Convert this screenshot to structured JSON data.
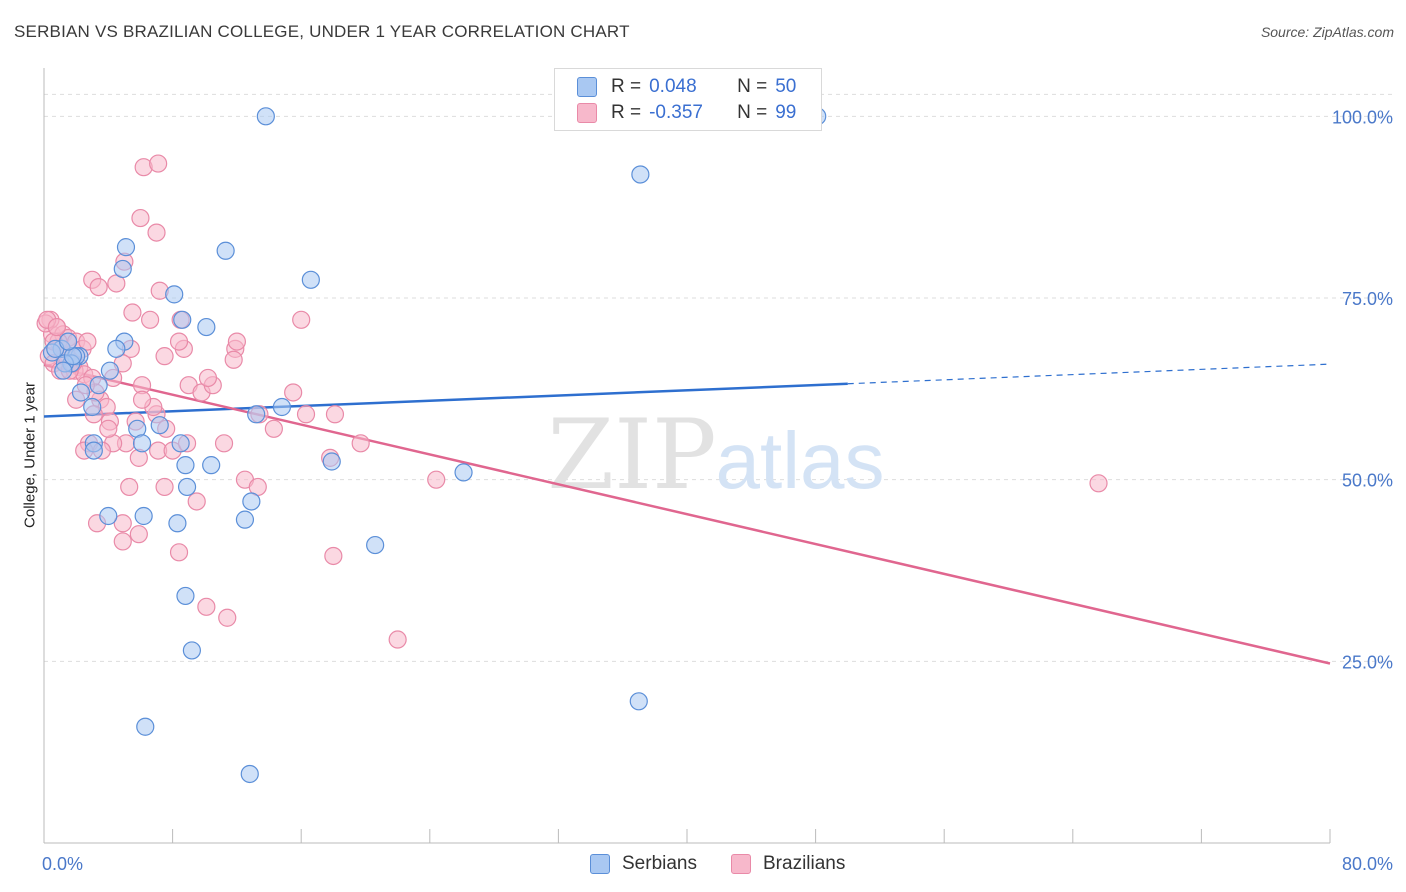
{
  "header": {
    "title": "SERBIAN VS BRAZILIAN COLLEGE, UNDER 1 YEAR CORRELATION CHART",
    "source": "Source: ZipAtlas.com"
  },
  "watermark": {
    "zip": "ZIP",
    "atlas": "atlas"
  },
  "legend": {
    "serbians": {
      "r_label": "R =",
      "r_value": "0.048",
      "n_label": "N =",
      "n_value": "50"
    },
    "brazilians": {
      "r_label": "R =",
      "r_value": "-0.357",
      "n_label": "N =",
      "n_value": "99"
    }
  },
  "bottom_legend": {
    "serbians": "Serbians",
    "brazilians": "Brazilians"
  },
  "colors": {
    "serbian_fill": "#a9c8f2",
    "serbian_stroke": "#5b8fd8",
    "serbian_line": "#2e6fcf",
    "brazilian_fill": "#f7b8cb",
    "brazilian_stroke": "#e98aa8",
    "brazilian_line": "#e0668f",
    "tick_label": "#4a78c9",
    "grid": "#dddddd"
  },
  "chart_data": {
    "type": "scatter",
    "title": "SERBIAN VS BRAZILIAN COLLEGE, UNDER 1 YEAR CORRELATION CHART",
    "xlabel": "",
    "ylabel": "College, Under 1 year",
    "xlim": [
      0,
      80
    ],
    "ylim": [
      0,
      105
    ],
    "x_tick_labels": [
      "0.0%",
      "80.0%"
    ],
    "y_ticks": [
      25,
      50,
      75,
      100
    ],
    "y_tick_labels": [
      "25.0%",
      "50.0%",
      "75.0%",
      "100.0%"
    ],
    "grid": true,
    "legend_placement": "top-center",
    "series": [
      {
        "name": "Serbians",
        "r": 0.048,
        "n": 50,
        "trend": {
          "x": [
            0,
            50
          ],
          "y": [
            58.7,
            63.2
          ],
          "dashed_to": [
            80,
            65.9
          ]
        },
        "x": [
          13.8,
          48.1,
          37.1,
          5.1,
          11.3,
          16.6,
          4.9,
          8.1,
          8.6,
          10.1,
          5.0,
          4.5,
          1.1,
          2.2,
          2.0,
          1.7,
          3.4,
          2.3,
          13.2,
          14.8,
          5.8,
          7.2,
          8.5,
          8.8,
          3.1,
          3.1,
          6.1,
          10.4,
          17.9,
          26.1,
          8.9,
          4.0,
          6.2,
          8.3,
          12.5,
          12.9,
          20.6,
          8.8,
          9.2,
          6.3,
          37.0,
          12.8,
          0.5,
          1.3,
          0.7,
          4.1,
          1.8,
          3.0,
          1.2,
          1.5
        ],
        "y": [
          100.0,
          100.0,
          92.0,
          82.0,
          81.5,
          77.5,
          79.0,
          75.5,
          72.0,
          71.0,
          69.0,
          68.0,
          68.0,
          67.0,
          67.0,
          66.0,
          63.0,
          62.0,
          59.0,
          60.0,
          57.0,
          57.5,
          55.0,
          52.0,
          55.0,
          54.0,
          55.0,
          52.0,
          52.5,
          51.0,
          49.0,
          45.0,
          45.0,
          44.0,
          44.5,
          47.0,
          41.0,
          34.0,
          26.5,
          16.0,
          19.5,
          9.5,
          67.5,
          66.0,
          68.0,
          65.0,
          67.0,
          60.0,
          65.0,
          69.0
        ]
      },
      {
        "name": "Brazilians",
        "r": -0.357,
        "n": 99,
        "trend": {
          "x": [
            0,
            80
          ],
          "y": [
            65.8,
            24.7
          ]
        },
        "x": [
          6.2,
          7.1,
          6.0,
          7.0,
          3.0,
          3.4,
          4.5,
          5.0,
          7.2,
          5.5,
          6.6,
          8.5,
          11.9,
          7.5,
          8.7,
          16.0,
          0.5,
          0.8,
          1.2,
          1.5,
          2.0,
          2.4,
          0.3,
          0.6,
          1.0,
          1.3,
          1.7,
          2.2,
          2.7,
          0.4,
          0.9,
          1.4,
          1.9,
          2.5,
          3.0,
          3.5,
          4.3,
          5.4,
          4.9,
          6.1,
          7.0,
          7.6,
          8.4,
          9.0,
          9.8,
          10.5,
          11.8,
          12.0,
          13.4,
          14.3,
          15.5,
          16.3,
          3.9,
          3.2,
          4.1,
          6.8,
          5.7,
          5.1,
          4.3,
          5.9,
          7.1,
          2.8,
          2.5,
          3.6,
          5.3,
          4.9,
          7.5,
          8.0,
          9.5,
          11.2,
          12.5,
          13.3,
          17.8,
          18.0,
          19.7,
          24.4,
          8.4,
          5.9,
          4.9,
          3.3,
          10.1,
          11.4,
          22.0,
          18.1,
          0.1,
          0.2,
          0.6,
          1.6,
          2.0,
          2.6,
          3.1,
          0.8,
          1.1,
          1.8,
          10.2,
          65.6,
          6.1,
          8.9,
          4.0
        ],
        "y": [
          93.0,
          93.5,
          86.0,
          84.0,
          77.5,
          76.5,
          77.0,
          80.0,
          76.0,
          73.0,
          72.0,
          72.0,
          68.0,
          67.0,
          68.0,
          72.0,
          70.0,
          71.0,
          70.0,
          69.5,
          69.0,
          68.0,
          67.0,
          66.0,
          65.0,
          67.0,
          66.0,
          65.5,
          69.0,
          72.0,
          69.0,
          67.0,
          65.0,
          64.5,
          64.0,
          61.0,
          64.0,
          68.0,
          66.0,
          63.0,
          59.0,
          57.0,
          69.0,
          63.0,
          62.0,
          63.0,
          66.5,
          69.0,
          59.0,
          57.0,
          62.0,
          59.0,
          60.0,
          62.0,
          58.0,
          60.0,
          58.0,
          55.0,
          55.0,
          53.0,
          54.0,
          55.0,
          54.0,
          54.0,
          49.0,
          44.0,
          49.0,
          54.0,
          47.0,
          55.0,
          50.0,
          49.0,
          53.0,
          39.5,
          55.0,
          50.0,
          40.0,
          42.5,
          41.5,
          44.0,
          32.5,
          31.0,
          28.0,
          59.0,
          71.5,
          72.0,
          69.0,
          65.0,
          61.0,
          63.0,
          59.0,
          71.0,
          68.0,
          66.0,
          64.0,
          49.5,
          61.0,
          55.0,
          57.0
        ]
      }
    ]
  }
}
